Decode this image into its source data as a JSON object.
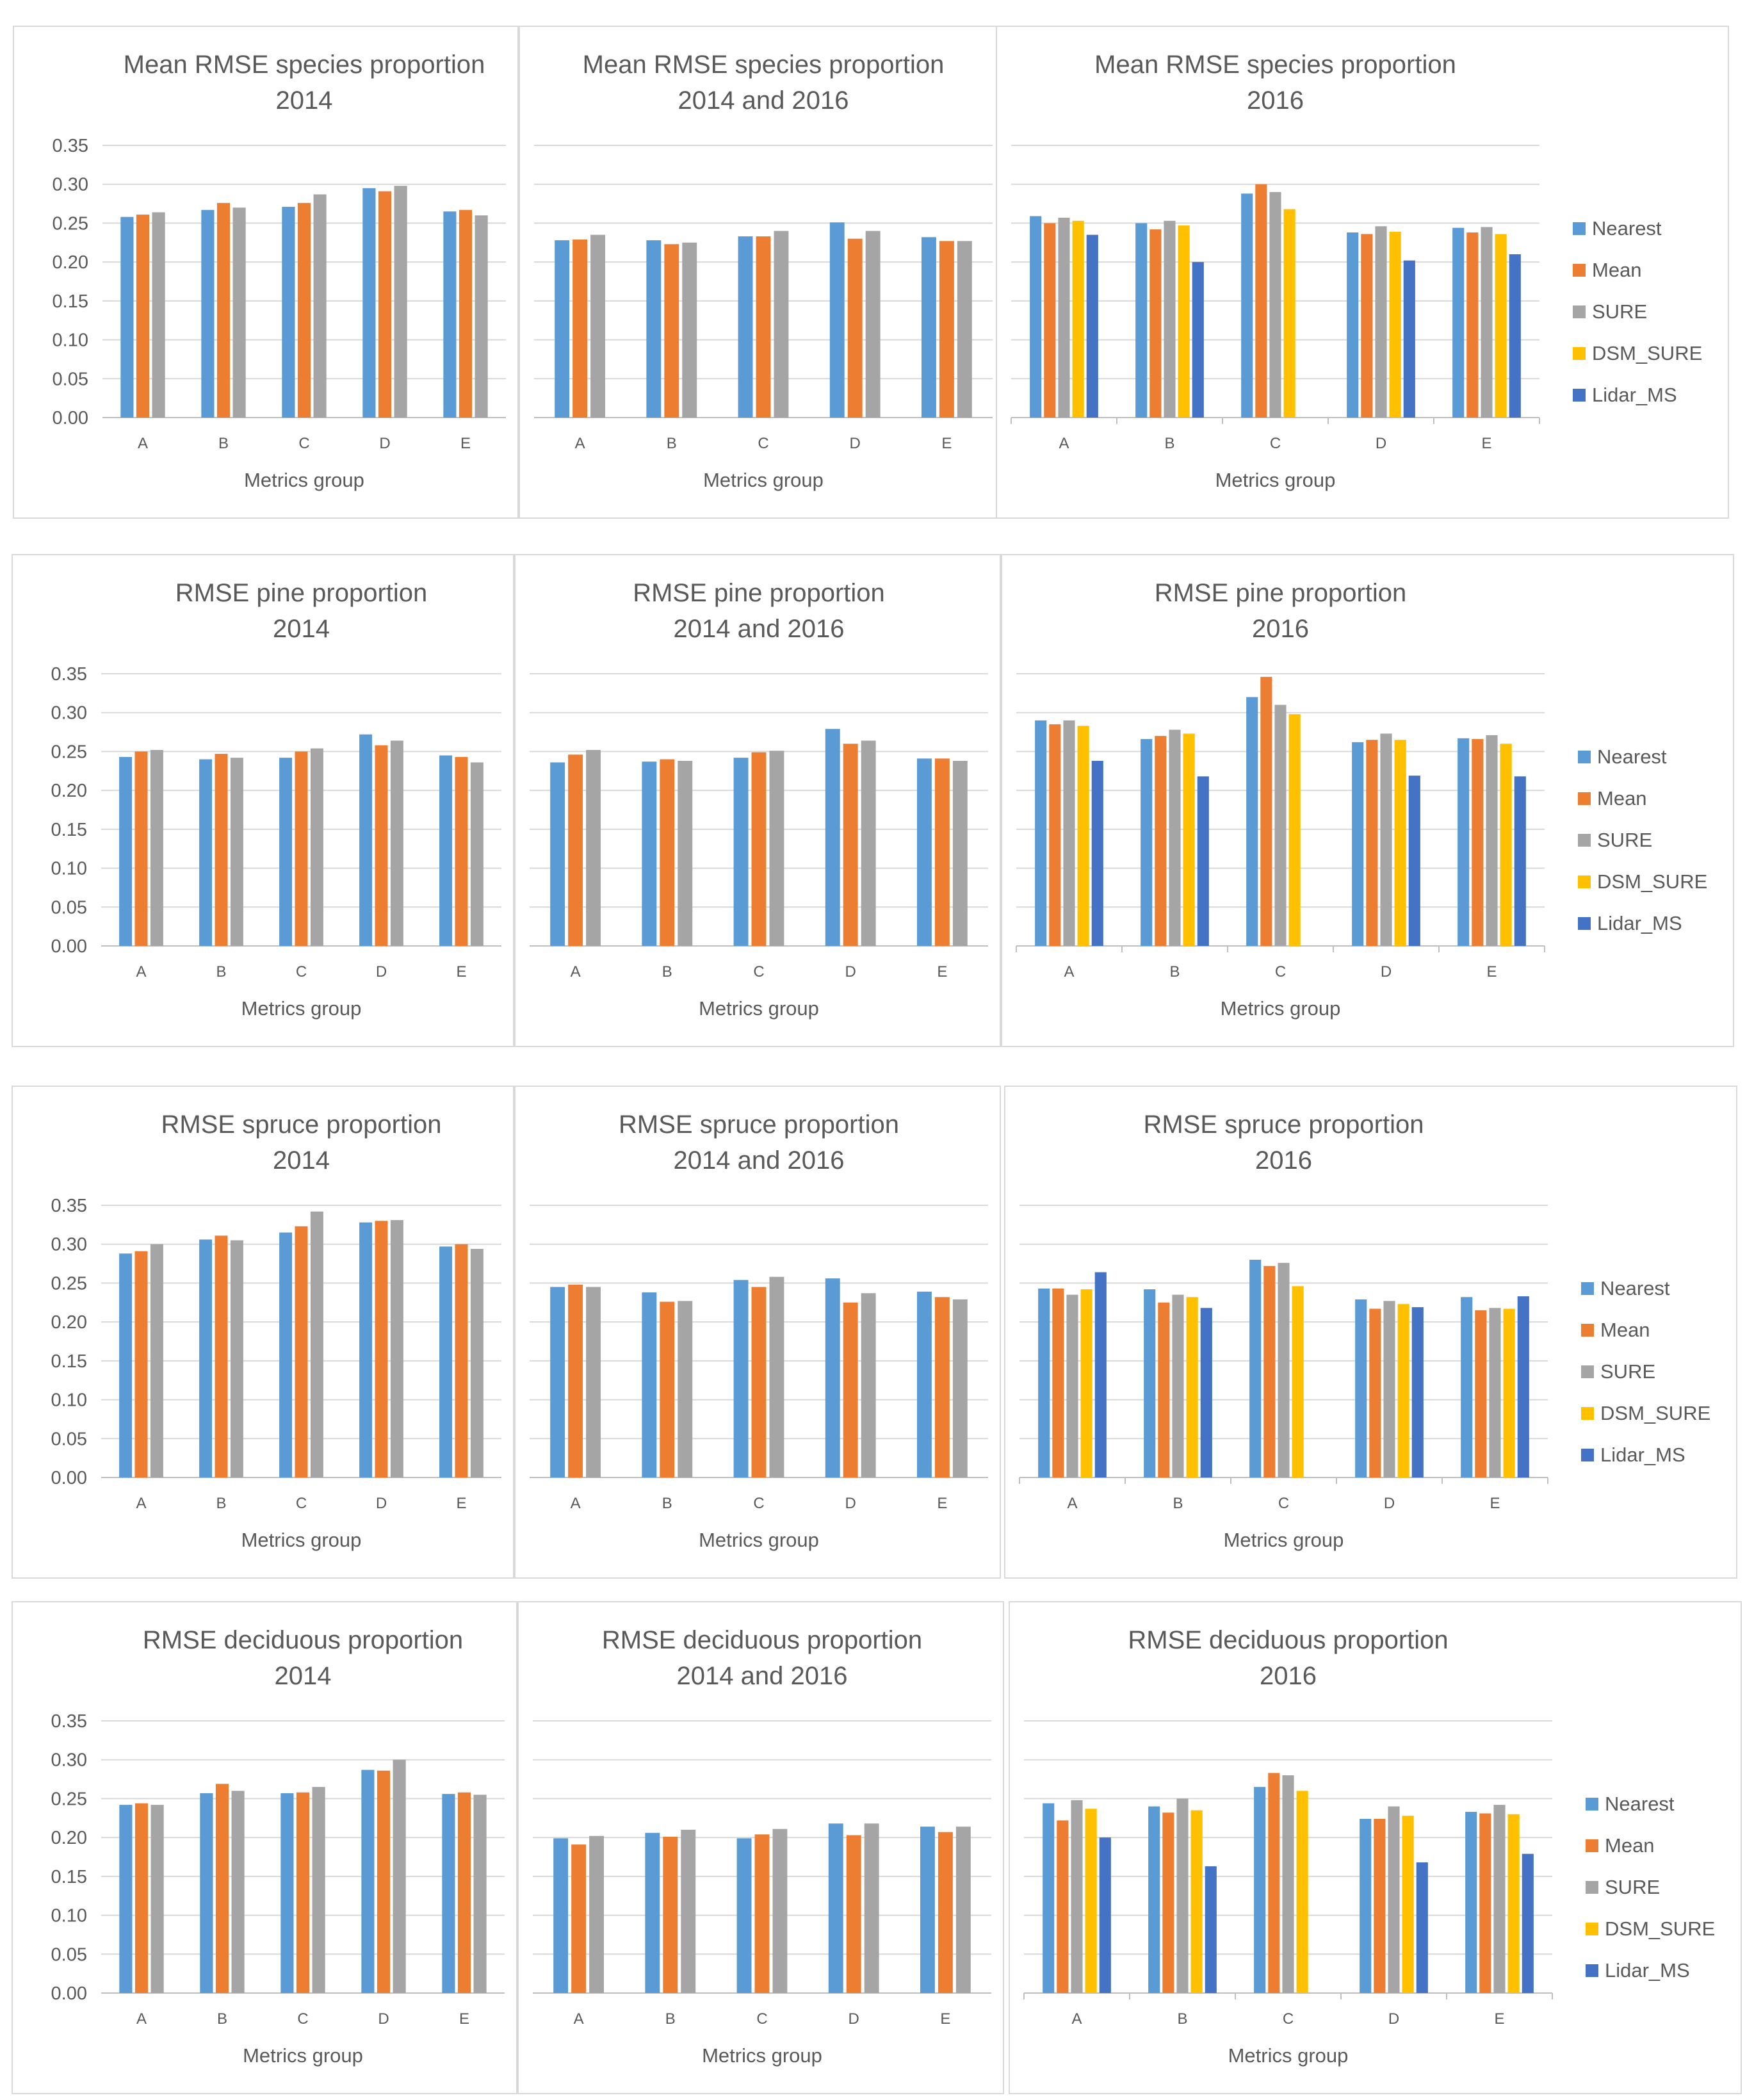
{
  "chart_data": [
    {
      "type": "bar",
      "title": "Mean RMSE species proportion",
      "subtitle": "2014",
      "xlabel": "Metrics group",
      "ylabel": "",
      "ylim": [
        0,
        0.35
      ],
      "yticks": [
        "0.35",
        "0.30",
        "0.25",
        "0.20",
        "0.15",
        "0.10",
        "0.05",
        "0.00"
      ],
      "categories": [
        "A",
        "B",
        "C",
        "D",
        "E"
      ],
      "series": [
        {
          "name": "Nearest",
          "values": [
            0.258,
            0.267,
            0.271,
            0.295,
            0.265
          ]
        },
        {
          "name": "Mean",
          "values": [
            0.261,
            0.276,
            0.276,
            0.291,
            0.267
          ]
        },
        {
          "name": "SURE",
          "values": [
            0.264,
            0.27,
            0.287,
            0.298,
            0.26
          ]
        }
      ],
      "legend": []
    },
    {
      "type": "bar",
      "title": "Mean RMSE species proportion",
      "subtitle": "2014 and 2016",
      "xlabel": "Metrics group",
      "ylabel": "",
      "ylim": [
        0,
        0.35
      ],
      "yticks": [],
      "categories": [
        "A",
        "B",
        "C",
        "D",
        "E"
      ],
      "series": [
        {
          "name": "Nearest",
          "values": [
            0.228,
            0.228,
            0.233,
            0.251,
            0.232
          ]
        },
        {
          "name": "Mean",
          "values": [
            0.229,
            0.223,
            0.233,
            0.23,
            0.227
          ]
        },
        {
          "name": "SURE",
          "values": [
            0.235,
            0.225,
            0.24,
            0.24,
            0.227
          ]
        }
      ],
      "legend": []
    },
    {
      "type": "bar",
      "title": "Mean RMSE species proportion",
      "subtitle": "2016",
      "xlabel": "Metrics group",
      "ylabel": "",
      "ylim": [
        0,
        0.35
      ],
      "yticks": [],
      "categories": [
        "A",
        "B",
        "C",
        "D",
        "E"
      ],
      "series": [
        {
          "name": "Nearest",
          "values": [
            0.259,
            0.25,
            0.288,
            0.238,
            0.244
          ]
        },
        {
          "name": "Mean",
          "values": [
            0.25,
            0.242,
            0.3,
            0.236,
            0.238
          ]
        },
        {
          "name": "SURE",
          "values": [
            0.257,
            0.253,
            0.29,
            0.246,
            0.245
          ]
        },
        {
          "name": "DSM_SURE",
          "values": [
            0.253,
            0.247,
            0.268,
            0.239,
            0.236
          ]
        },
        {
          "name": "Lidar_MS",
          "values": [
            0.235,
            0.2,
            null,
            0.202,
            0.21
          ]
        }
      ],
      "legend": [
        "Nearest",
        "Mean",
        "SURE",
        "DSM_SURE",
        "Lidar_MS"
      ]
    },
    {
      "type": "bar",
      "title": "RMSE pine proportion",
      "subtitle": "2014",
      "xlabel": "Metrics group",
      "ylabel": "",
      "ylim": [
        0,
        0.35
      ],
      "yticks": [
        "0.35",
        "0.30",
        "0.25",
        "0.20",
        "0.15",
        "0.10",
        "0.05",
        "0.00"
      ],
      "categories": [
        "A",
        "B",
        "C",
        "D",
        "E"
      ],
      "series": [
        {
          "name": "Nearest",
          "values": [
            0.243,
            0.24,
            0.242,
            0.272,
            0.245
          ]
        },
        {
          "name": "Mean",
          "values": [
            0.25,
            0.247,
            0.25,
            0.258,
            0.243
          ]
        },
        {
          "name": "SURE",
          "values": [
            0.252,
            0.242,
            0.254,
            0.264,
            0.236
          ]
        }
      ],
      "legend": []
    },
    {
      "type": "bar",
      "title": "RMSE pine proportion",
      "subtitle": "2014 and 2016",
      "xlabel": "Metrics group",
      "ylabel": "",
      "ylim": [
        0,
        0.35
      ],
      "yticks": [],
      "categories": [
        "A",
        "B",
        "C",
        "D",
        "E"
      ],
      "series": [
        {
          "name": "Nearest",
          "values": [
            0.236,
            0.237,
            0.242,
            0.279,
            0.241
          ]
        },
        {
          "name": "Mean",
          "values": [
            0.246,
            0.24,
            0.249,
            0.26,
            0.241
          ]
        },
        {
          "name": "SURE",
          "values": [
            0.252,
            0.238,
            0.251,
            0.264,
            0.238
          ]
        }
      ],
      "legend": []
    },
    {
      "type": "bar",
      "title": "RMSE pine proportion",
      "subtitle": "2016",
      "xlabel": "Metrics group",
      "ylabel": "",
      "ylim": [
        0,
        0.35
      ],
      "yticks": [],
      "categories": [
        "A",
        "B",
        "C",
        "D",
        "E"
      ],
      "series": [
        {
          "name": "Nearest",
          "values": [
            0.29,
            0.266,
            0.32,
            0.262,
            0.267
          ]
        },
        {
          "name": "Mean",
          "values": [
            0.285,
            0.27,
            0.346,
            0.265,
            0.266
          ]
        },
        {
          "name": "SURE",
          "values": [
            0.29,
            0.278,
            0.31,
            0.273,
            0.271
          ]
        },
        {
          "name": "DSM_SURE",
          "values": [
            0.283,
            0.273,
            0.298,
            0.265,
            0.26
          ]
        },
        {
          "name": "Lidar_MS",
          "values": [
            0.238,
            0.218,
            null,
            0.219,
            0.218
          ]
        }
      ],
      "legend": [
        "Nearest",
        "Mean",
        "SURE",
        "DSM_SURE",
        "Lidar_MS"
      ]
    },
    {
      "type": "bar",
      "title": "RMSE spruce proportion",
      "subtitle": "2014",
      "xlabel": "Metrics group",
      "ylabel": "",
      "ylim": [
        0,
        0.35
      ],
      "yticks": [
        "0.35",
        "0.30",
        "0.25",
        "0.20",
        "0.15",
        "0.10",
        "0.05",
        "0.00"
      ],
      "categories": [
        "A",
        "B",
        "C",
        "D",
        "E"
      ],
      "series": [
        {
          "name": "Nearest",
          "values": [
            0.288,
            0.306,
            0.315,
            0.328,
            0.297
          ]
        },
        {
          "name": "Mean",
          "values": [
            0.291,
            0.311,
            0.323,
            0.33,
            0.3
          ]
        },
        {
          "name": "SURE",
          "values": [
            0.3,
            0.305,
            0.342,
            0.331,
            0.294
          ]
        }
      ],
      "legend": []
    },
    {
      "type": "bar",
      "title": "RMSE spruce proportion",
      "subtitle": "2014 and 2016",
      "xlabel": "Metrics group",
      "ylabel": "",
      "ylim": [
        0,
        0.35
      ],
      "yticks": [],
      "categories": [
        "A",
        "B",
        "C",
        "D",
        "E"
      ],
      "series": [
        {
          "name": "Nearest",
          "values": [
            0.245,
            0.238,
            0.254,
            0.256,
            0.239
          ]
        },
        {
          "name": "Mean",
          "values": [
            0.248,
            0.226,
            0.245,
            0.225,
            0.232
          ]
        },
        {
          "name": "SURE",
          "values": [
            0.245,
            0.227,
            0.258,
            0.237,
            0.229
          ]
        }
      ],
      "legend": []
    },
    {
      "type": "bar",
      "title": "RMSE spruce proportion",
      "subtitle": "2016",
      "xlabel": "Metrics group",
      "ylabel": "",
      "ylim": [
        0,
        0.35
      ],
      "yticks": [],
      "categories": [
        "A",
        "B",
        "C",
        "D",
        "E"
      ],
      "series": [
        {
          "name": "Nearest",
          "values": [
            0.243,
            0.242,
            0.28,
            0.229,
            0.232
          ]
        },
        {
          "name": "Mean",
          "values": [
            0.243,
            0.225,
            0.272,
            0.217,
            0.215
          ]
        },
        {
          "name": "SURE",
          "values": [
            0.235,
            0.235,
            0.276,
            0.227,
            0.218
          ]
        },
        {
          "name": "DSM_SURE",
          "values": [
            0.242,
            0.232,
            0.246,
            0.223,
            0.217
          ]
        },
        {
          "name": "Lidar_MS",
          "values": [
            0.264,
            0.218,
            null,
            0.219,
            0.233
          ]
        }
      ],
      "legend": [
        "Nearest",
        "Mean",
        "SURE",
        "DSM_SURE",
        "Lidar_MS"
      ]
    },
    {
      "type": "bar",
      "title": "RMSE deciduous proportion",
      "subtitle": "2014",
      "xlabel": "Metrics group",
      "ylabel": "",
      "ylim": [
        0,
        0.35
      ],
      "yticks": [
        "0.35",
        "0.30",
        "0.25",
        "0.20",
        "0.15",
        "0.10",
        "0.05",
        "0.00"
      ],
      "categories": [
        "A",
        "B",
        "C",
        "D",
        "E"
      ],
      "series": [
        {
          "name": "Nearest",
          "values": [
            0.242,
            0.257,
            0.257,
            0.287,
            0.256
          ]
        },
        {
          "name": "Mean",
          "values": [
            0.244,
            0.269,
            0.258,
            0.286,
            0.258
          ]
        },
        {
          "name": "SURE",
          "values": [
            0.242,
            0.26,
            0.265,
            0.3,
            0.255
          ]
        }
      ],
      "legend": []
    },
    {
      "type": "bar",
      "title": "RMSE deciduous proportion",
      "subtitle": "2014 and 2016",
      "xlabel": "Metrics group",
      "ylabel": "",
      "ylim": [
        0,
        0.35
      ],
      "yticks": [],
      "categories": [
        "A",
        "B",
        "C",
        "D",
        "E"
      ],
      "series": [
        {
          "name": "Nearest",
          "values": [
            0.199,
            0.206,
            0.199,
            0.218,
            0.214
          ]
        },
        {
          "name": "Mean",
          "values": [
            0.191,
            0.201,
            0.204,
            0.203,
            0.207
          ]
        },
        {
          "name": "SURE",
          "values": [
            0.202,
            0.21,
            0.211,
            0.218,
            0.214
          ]
        }
      ],
      "legend": []
    },
    {
      "type": "bar",
      "title": "RMSE deciduous proportion",
      "subtitle": "2016",
      "xlabel": "Metrics group",
      "ylabel": "",
      "ylim": [
        0,
        0.35
      ],
      "yticks": [],
      "categories": [
        "A",
        "B",
        "C",
        "D",
        "E"
      ],
      "series": [
        {
          "name": "Nearest",
          "values": [
            0.244,
            0.24,
            0.265,
            0.224,
            0.233
          ]
        },
        {
          "name": "Mean",
          "values": [
            0.222,
            0.232,
            0.283,
            0.224,
            0.231
          ]
        },
        {
          "name": "SURE",
          "values": [
            0.248,
            0.25,
            0.28,
            0.24,
            0.242
          ]
        },
        {
          "name": "DSM_SURE",
          "values": [
            0.237,
            0.235,
            0.26,
            0.228,
            0.23
          ]
        },
        {
          "name": "Lidar_MS",
          "values": [
            0.2,
            0.163,
            null,
            0.168,
            0.179
          ]
        }
      ],
      "legend": [
        "Nearest",
        "Mean",
        "SURE",
        "DSM_SURE",
        "Lidar_MS"
      ]
    }
  ],
  "colors": {
    "Nearest": "#5b9bd5",
    "Mean": "#ed7d31",
    "SURE": "#a5a5a5",
    "DSM_SURE": "#ffc000",
    "Lidar_MS": "#4472c4",
    "grid": "#d9d9d9",
    "text": "#595959"
  }
}
